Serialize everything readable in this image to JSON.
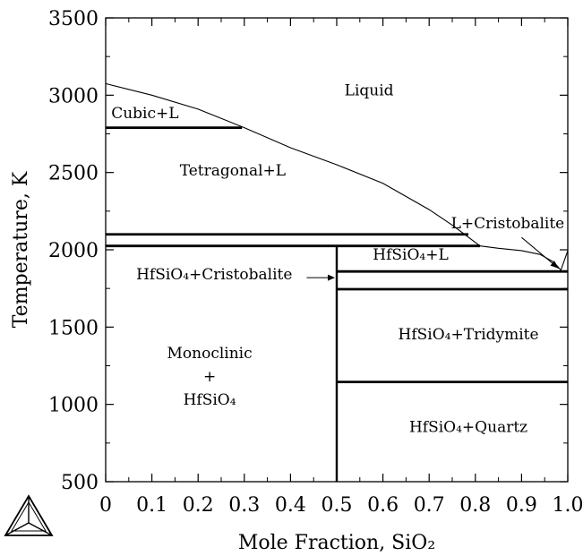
{
  "chart_data": {
    "type": "phase-diagram",
    "title": "",
    "xlabel": "Mole Fraction, SiO₂",
    "ylabel": "Temperature, K",
    "xlim": [
      0,
      1.0
    ],
    "ylim": [
      500,
      3500
    ],
    "x_ticks": [
      "0",
      "0.1",
      "0.2",
      "0.3",
      "0.4",
      "0.5",
      "0.6",
      "0.7",
      "0.8",
      "0.9",
      "1.0"
    ],
    "y_ticks": [
      "500",
      "1000",
      "1500",
      "2000",
      "2500",
      "3000",
      "3500"
    ],
    "liquidus_left": [
      [
        0.0,
        3075
      ],
      [
        0.1,
        3000
      ],
      [
        0.2,
        2910
      ],
      [
        0.3,
        2790
      ],
      [
        0.4,
        2660
      ],
      [
        0.5,
        2550
      ],
      [
        0.6,
        2430
      ],
      [
        0.7,
        2260
      ],
      [
        0.75,
        2160
      ],
      [
        0.81,
        2025
      ]
    ],
    "liquidus_right": [
      [
        0.81,
        2025
      ],
      [
        0.85,
        2010
      ],
      [
        0.9,
        1995
      ],
      [
        0.94,
        1970
      ],
      [
        0.97,
        1920
      ],
      [
        0.985,
        1868
      ],
      [
        1.0,
        1995
      ]
    ],
    "invariant_lines": [
      {
        "x": [
          0.0,
          0.295
        ],
        "y": 2790
      },
      {
        "x": [
          0.0,
          0.785
        ],
        "y": 2100
      },
      {
        "x": [
          0.0,
          0.81
        ],
        "y": 2025
      },
      {
        "x": [
          0.5,
          1.0
        ],
        "y": 1860
      },
      {
        "x": [
          0.5,
          1.0
        ],
        "y": 1745
      },
      {
        "x": [
          0.5,
          1.0
        ],
        "y": 1145
      }
    ],
    "vertical_lines": [
      {
        "x": 0.5,
        "y": [
          500,
          2025
        ]
      }
    ],
    "region_labels": [
      {
        "lines": [
          "Liquid"
        ],
        "x": 0.57,
        "y": 3000
      },
      {
        "lines": [
          "Cubic+L"
        ],
        "x": 0.085,
        "y": 2850
      },
      {
        "lines": [
          "Tetragonal+L"
        ],
        "x": 0.275,
        "y": 2480
      },
      {
        "lines": [
          "L+Cristobalite"
        ],
        "x": 0.87,
        "y": 2140
      },
      {
        "lines": [
          "HfSiO₄+L"
        ],
        "x": 0.66,
        "y": 1935
      },
      {
        "lines": [
          "HfSiO₄+Cristobalite"
        ],
        "x": 0.235,
        "y": 1810
      },
      {
        "lines": [
          "HfSiO₄+Tridymite"
        ],
        "x": 0.785,
        "y": 1420
      },
      {
        "lines": [
          "Monoclinic",
          "+",
          "HfSiO₄"
        ],
        "x": 0.225,
        "y": 1300
      },
      {
        "lines": [
          "HfSiO₄+Quartz"
        ],
        "x": 0.785,
        "y": 820
      }
    ]
  }
}
